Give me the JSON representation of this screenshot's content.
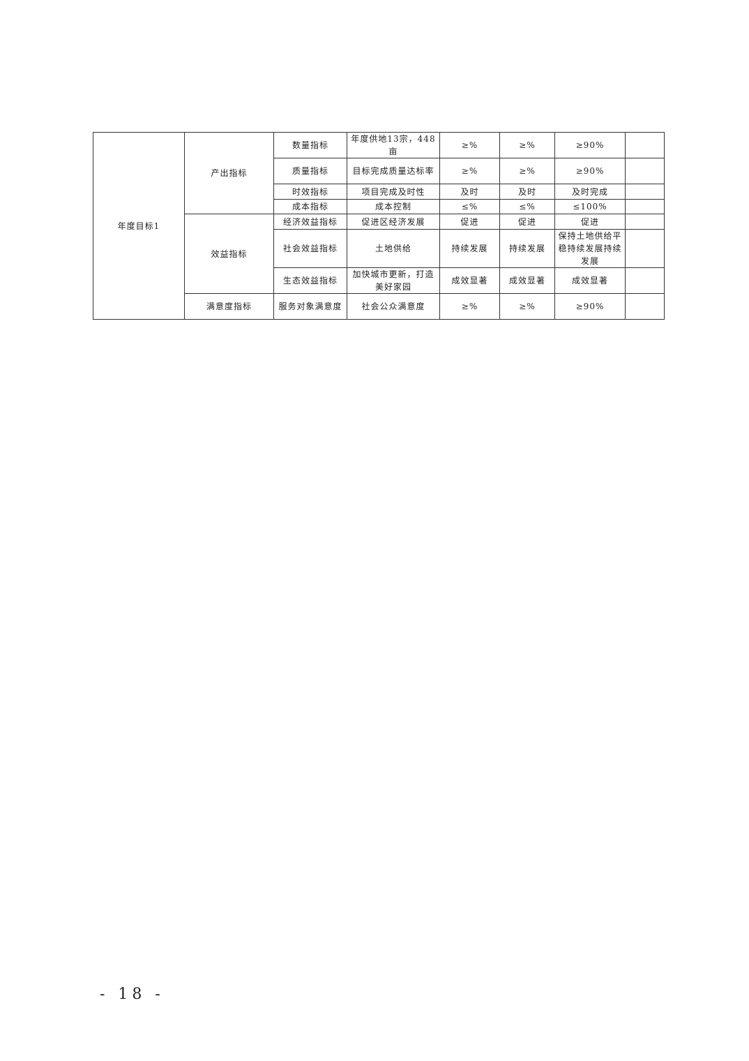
{
  "table": {
    "goal": "年度目标1",
    "groups": {
      "output": "产出指标",
      "benefit": "效益指标",
      "satisfaction": "满意度指标"
    },
    "rows": [
      {
        "sub": "数量指标",
        "content": "年度供地13宗，448亩",
        "c1": "≥%",
        "c2": "≥%",
        "c3": "≥90%",
        "c4": ""
      },
      {
        "sub": "质量指标",
        "content": "目标完成质量达标率",
        "c1": "≥%",
        "c2": "≥%",
        "c3": "≥90%",
        "c4": ""
      },
      {
        "sub": "时效指标",
        "content": "项目完成及时性",
        "c1": "及时",
        "c2": "及时",
        "c3": "及时完成",
        "c4": ""
      },
      {
        "sub": "成本指标",
        "content": "成本控制",
        "c1": "≤%",
        "c2": "≤%",
        "c3": "≤100%",
        "c4": ""
      },
      {
        "sub": "经济效益指标",
        "content": "促进区经济发展",
        "c1": "促进",
        "c2": "促进",
        "c3": "促进",
        "c4": ""
      },
      {
        "sub": "社会效益指标",
        "content": "土地供给",
        "c1": "持续发展",
        "c2": "持续发展",
        "c3": "保持土地供给平稳持续发展持续发展",
        "c4": ""
      },
      {
        "sub": "生态效益指标",
        "content": "加快城市更新，打造美好家园",
        "c1": "成效显著",
        "c2": "成效显著",
        "c3": "成效显著",
        "c4": ""
      },
      {
        "sub": "服务对象满意度",
        "content": "社会公众满意度",
        "c1": "≥%",
        "c2": "≥%",
        "c3": "≥90%",
        "c4": ""
      }
    ]
  },
  "page_number": "- 18 -"
}
